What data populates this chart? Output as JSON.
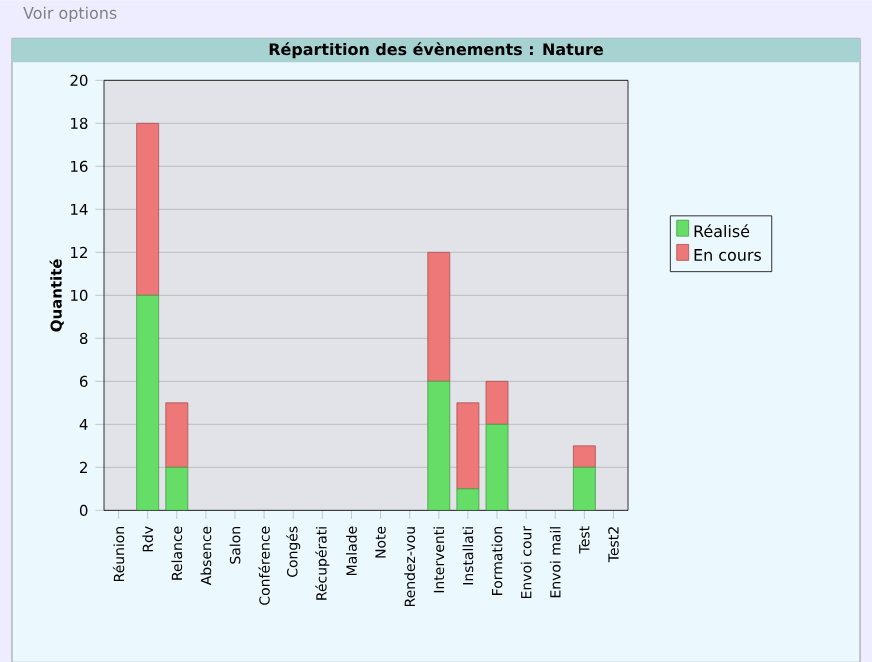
{
  "chart_data": {
    "type": "bar",
    "title": "Répartition des évènements : Nature",
    "ylabel": "Quantité",
    "annotations": [
      "Voir options"
    ],
    "categories": [
      "Réunion",
      "Rdv",
      "Relance",
      "Absence",
      "Salon",
      "Conférence",
      "Congés",
      "Récupérati",
      "Malade",
      "Note",
      "Rendez-vou",
      "Interventi",
      "Installati",
      "Formation",
      "Envoi cour",
      "Envoi mail",
      "Test",
      "Test2"
    ],
    "series": [
      {
        "name": "Réalisé",
        "color": "#66dd66",
        "values": [
          0,
          10,
          2,
          0,
          0,
          0,
          0,
          0,
          0,
          0,
          0,
          6,
          1,
          4,
          0,
          0,
          2,
          0
        ]
      },
      {
        "name": "En cours",
        "color": "#ee7777",
        "values": [
          0,
          8,
          3,
          0,
          0,
          0,
          0,
          0,
          0,
          0,
          0,
          6,
          4,
          2,
          0,
          0,
          1,
          0
        ]
      }
    ],
    "stacked": true,
    "ylim": [
      0,
      20
    ],
    "yticks": [
      0,
      2,
      4,
      6,
      8,
      10,
      12,
      14,
      16,
      18,
      20
    ],
    "grid": "y",
    "legend": "right"
  }
}
